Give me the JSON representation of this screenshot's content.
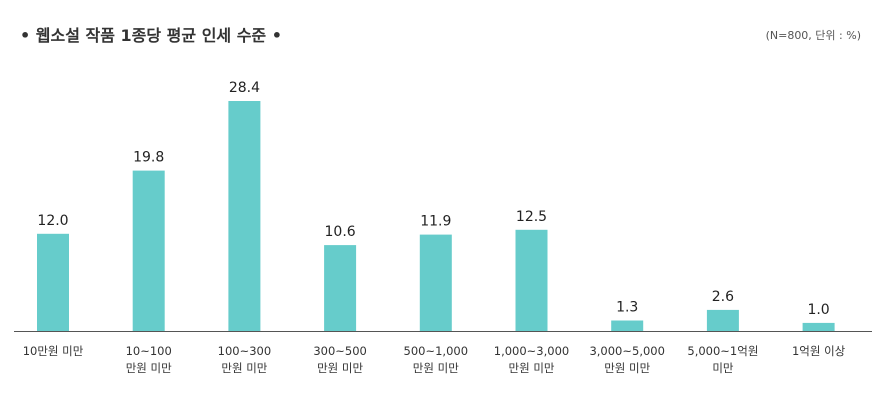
{
  "chart_data": {
    "type": "bar",
    "title": "• 웹소설 작품 1종당 평균 인세 수준 •",
    "note": "(N=800, 단위 : %)",
    "categories": [
      [
        "10만원 미만"
      ],
      [
        "10~100",
        "만원 미만"
      ],
      [
        "100~300",
        "만원 미만"
      ],
      [
        "300~500",
        "만원 미만"
      ],
      [
        "500~1,000",
        "만원 미만"
      ],
      [
        "1,000~3,000",
        "만원 미만"
      ],
      [
        "3,000~5,000",
        "만원 미만"
      ],
      [
        "5,000~1억원",
        "미만"
      ],
      [
        "1억원 이상"
      ]
    ],
    "values": [
      12.0,
      19.8,
      28.4,
      10.6,
      11.9,
      12.5,
      1.3,
      2.6,
      1.0
    ],
    "value_labels": [
      "12.0",
      "19.8",
      "28.4",
      "10.6",
      "11.9",
      "12.5",
      "1.3",
      "2.6",
      "1.0"
    ],
    "bar_color": "#66cccb",
    "axis_color": "#555555",
    "grid": false,
    "legend": "none"
  }
}
